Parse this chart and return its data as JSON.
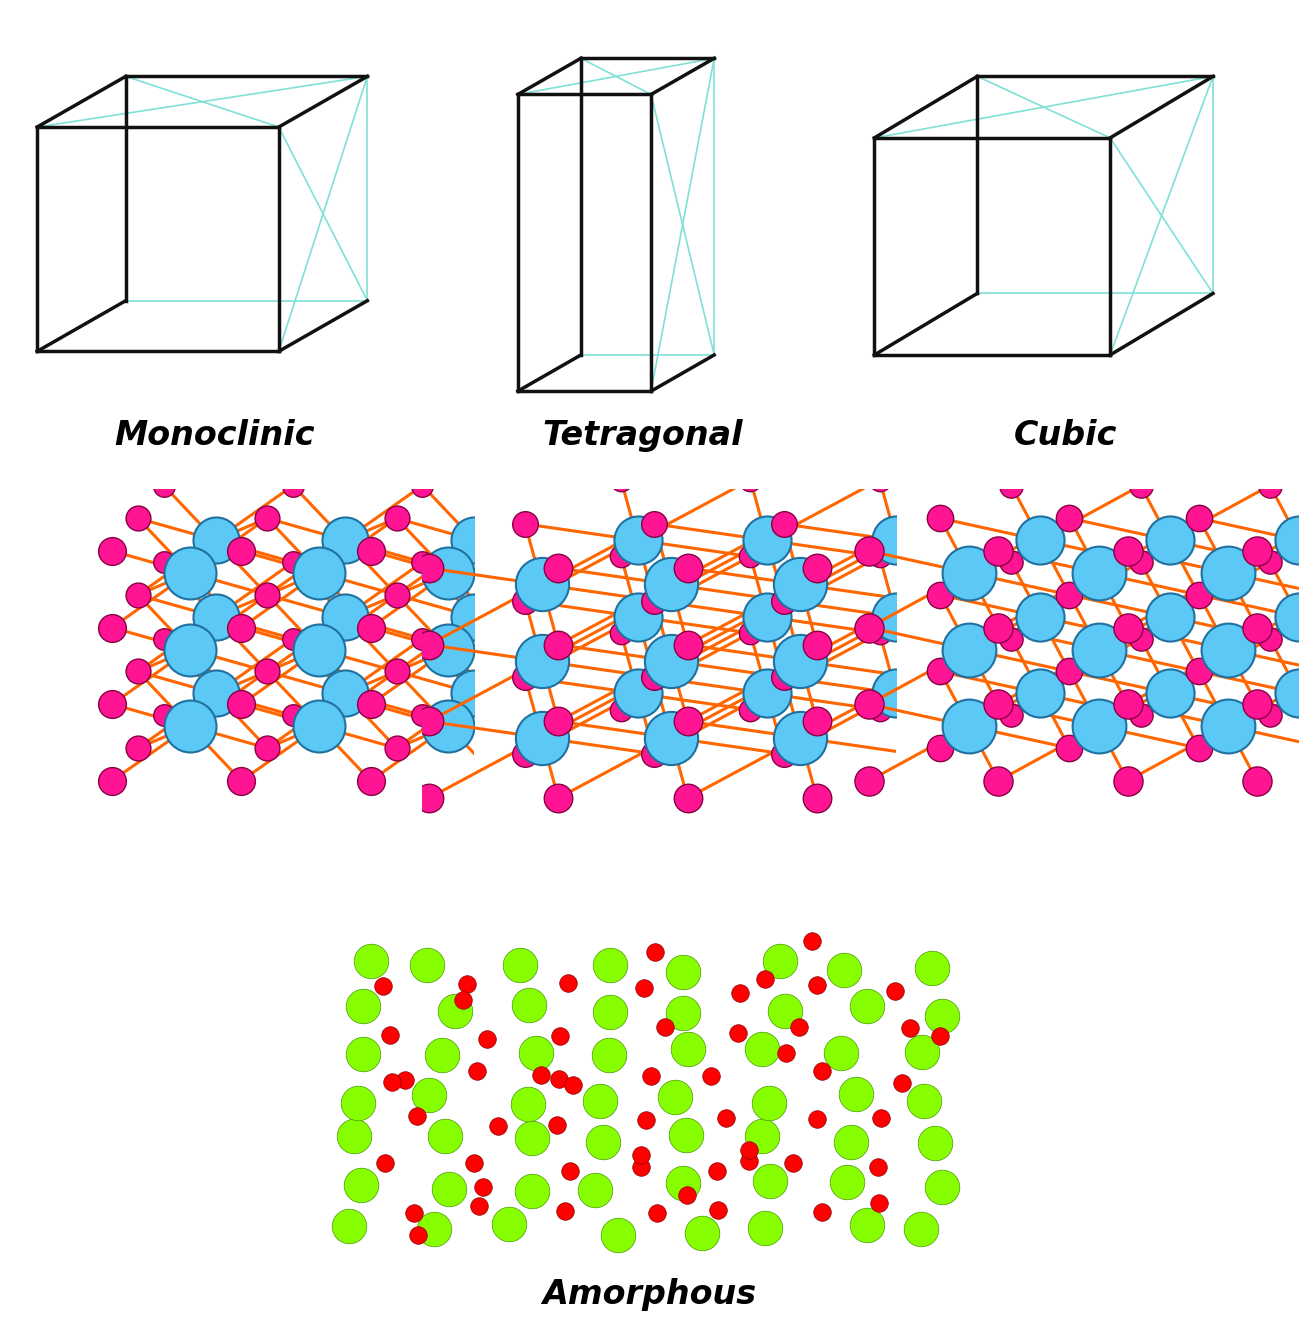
{
  "background_color": "#ffffff",
  "labels": {
    "monoclinic": "Monoclinic",
    "tetragonal": "Tetragonal",
    "cubic": "Cubic",
    "amorphous": "Amorphous"
  },
  "label_fontsize": 24,
  "crystal_color_dark": "#111111",
  "crystal_color_light": "#80e0d8",
  "atom_zr_color": "#5bc8f5",
  "atom_zr_edge": "#2070a0",
  "atom_o_color": "#ff1493",
  "atom_o_edge": "#880044",
  "bond_color": "#ff6600",
  "amorphous_large_color": "#88ff00",
  "amorphous_large_edge": "#449900",
  "amorphous_small_color": "#ff0000",
  "amorphous_small_edge": "#880000"
}
